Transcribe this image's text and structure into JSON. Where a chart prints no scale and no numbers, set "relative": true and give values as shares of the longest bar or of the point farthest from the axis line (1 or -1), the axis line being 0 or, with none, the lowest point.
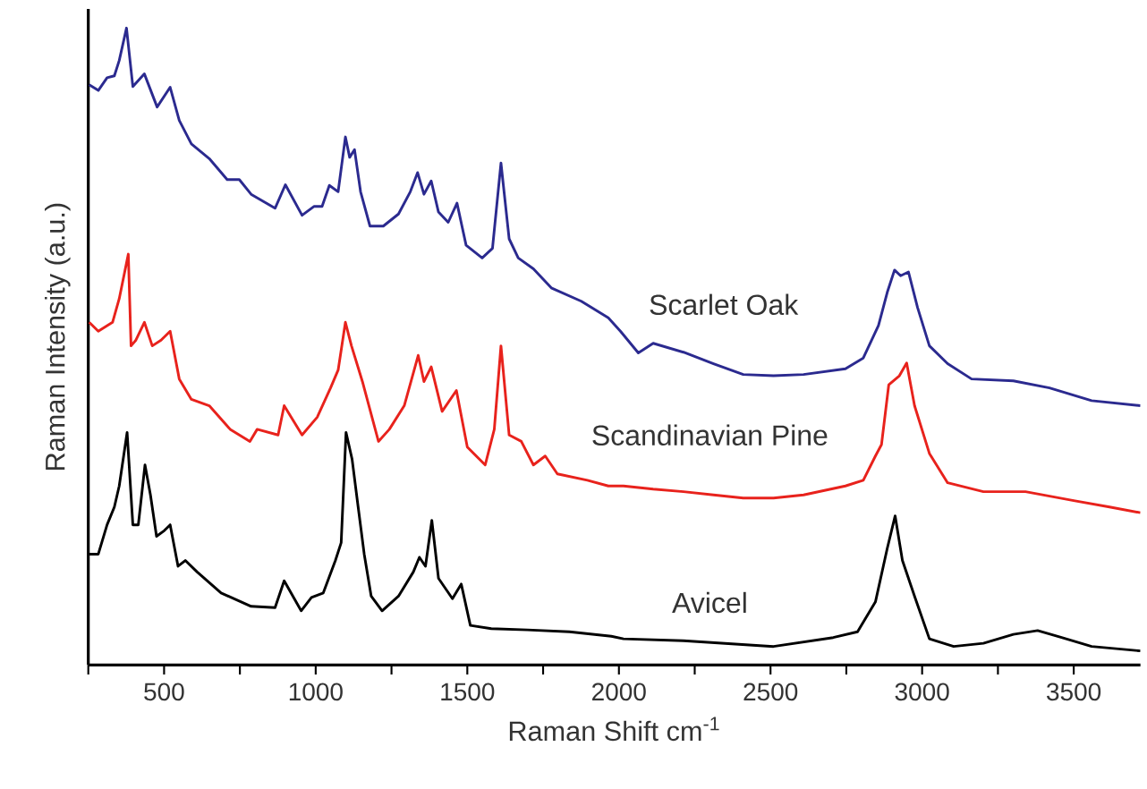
{
  "chart_data": {
    "type": "line",
    "relative": true,
    "xlabel": "Raman Shift cm$^{-1}$",
    "ylabel": "Raman Intensity (a.u.)",
    "xlim": [
      250,
      3720
    ],
    "xticks": [
      {
        "value": 250,
        "label": null
      },
      500,
      {
        "value": 750,
        "label": null
      },
      1000,
      {
        "value": 1250,
        "label": null
      },
      1500,
      {
        "value": 1750,
        "label": null
      },
      2000,
      {
        "value": 2250,
        "label": null
      },
      2500,
      {
        "value": 2750,
        "label": null
      },
      3000,
      {
        "value": 3250,
        "label": null
      },
      3500
    ],
    "marker": "none",
    "line_style": "solid",
    "legend": false,
    "grid": false,
    "series": [
      {
        "name": "Scarlet Oak",
        "color": "#2b2a8f",
        "x": [
          253,
          283,
          312,
          336,
          352,
          376,
          397,
          435,
          477,
          520,
          550,
          590,
          649,
          708,
          748,
          787,
          866,
          900,
          955,
          995,
          1021,
          1045,
          1074,
          1098,
          1112,
          1128,
          1148,
          1179,
          1223,
          1273,
          1312,
          1336,
          1357,
          1381,
          1405,
          1437,
          1466,
          1496,
          1549,
          1583,
          1611,
          1638,
          1668,
          1718,
          1777,
          1876,
          1965,
          2005,
          2064,
          2113,
          2213,
          2312,
          2410,
          2510,
          2609,
          2747,
          2806,
          2856,
          2885,
          2909,
          2929,
          2955,
          2985,
          3024,
          3084,
          3163,
          3301,
          3420,
          3559,
          3720
        ],
        "values": [
          0.911,
          0.902,
          0.922,
          0.925,
          0.949,
          1.0,
          0.908,
          0.928,
          0.876,
          0.907,
          0.855,
          0.818,
          0.795,
          0.762,
          0.762,
          0.739,
          0.717,
          0.754,
          0.706,
          0.72,
          0.72,
          0.753,
          0.743,
          0.829,
          0.797,
          0.809,
          0.743,
          0.689,
          0.689,
          0.708,
          0.743,
          0.773,
          0.739,
          0.76,
          0.711,
          0.695,
          0.725,
          0.659,
          0.639,
          0.654,
          0.788,
          0.669,
          0.639,
          0.622,
          0.592,
          0.571,
          0.545,
          0.524,
          0.49,
          0.505,
          0.491,
          0.473,
          0.456,
          0.454,
          0.456,
          0.465,
          0.482,
          0.533,
          0.585,
          0.62,
          0.611,
          0.617,
          0.561,
          0.501,
          0.473,
          0.449,
          0.446,
          0.435,
          0.415,
          0.407
        ]
      },
      {
        "name": "Scandinavian Pine",
        "color": "#e8221c",
        "x": [
          253,
          283,
          330,
          352,
          382,
          391,
          407,
          435,
          461,
          490,
          520,
          550,
          590,
          649,
          718,
          783,
          807,
          876,
          896,
          955,
          1005,
          1049,
          1074,
          1098,
          1118,
          1154,
          1207,
          1243,
          1292,
          1338,
          1357,
          1381,
          1417,
          1464,
          1500,
          1559,
          1589,
          1611,
          1638,
          1678,
          1718,
          1757,
          1797,
          1896,
          1965,
          2015,
          2113,
          2213,
          2312,
          2410,
          2510,
          2609,
          2747,
          2806,
          2846,
          2866,
          2890,
          2925,
          2949,
          2975,
          3024,
          3084,
          3202,
          3341,
          3500,
          3618,
          3720
        ],
        "values": [
          0.538,
          0.524,
          0.538,
          0.575,
          0.645,
          0.501,
          0.51,
          0.538,
          0.501,
          0.51,
          0.524,
          0.449,
          0.417,
          0.407,
          0.37,
          0.351,
          0.37,
          0.361,
          0.407,
          0.361,
          0.389,
          0.435,
          0.463,
          0.538,
          0.501,
          0.445,
          0.351,
          0.37,
          0.407,
          0.486,
          0.445,
          0.468,
          0.398,
          0.431,
          0.342,
          0.314,
          0.37,
          0.501,
          0.361,
          0.351,
          0.314,
          0.328,
          0.3,
          0.29,
          0.281,
          0.281,
          0.276,
          0.272,
          0.267,
          0.262,
          0.262,
          0.267,
          0.281,
          0.29,
          0.328,
          0.346,
          0.44,
          0.454,
          0.474,
          0.407,
          0.332,
          0.286,
          0.272,
          0.272,
          0.258,
          0.248,
          0.239
        ]
      },
      {
        "name": "Avicel",
        "color": "#000000",
        "x": [
          253,
          283,
          312,
          336,
          352,
          378,
          397,
          415,
          437,
          455,
          475,
          501,
          520,
          546,
          570,
          609,
          688,
          787,
          866,
          896,
          952,
          986,
          1025,
          1065,
          1084,
          1100,
          1120,
          1140,
          1160,
          1183,
          1219,
          1273,
          1322,
          1342,
          1362,
          1383,
          1405,
          1451,
          1480,
          1510,
          1579,
          1698,
          1837,
          1975,
          2015,
          2213,
          2510,
          2707,
          2787,
          2846,
          2885,
          2911,
          2935,
          2975,
          3024,
          3104,
          3202,
          3301,
          3381,
          3460,
          3559,
          3720
        ],
        "values": [
          0.174,
          0.174,
          0.22,
          0.248,
          0.281,
          0.365,
          0.22,
          0.22,
          0.314,
          0.267,
          0.202,
          0.211,
          0.22,
          0.155,
          0.164,
          0.146,
          0.113,
          0.092,
          0.09,
          0.132,
          0.085,
          0.106,
          0.113,
          0.164,
          0.192,
          0.365,
          0.323,
          0.248,
          0.174,
          0.108,
          0.085,
          0.108,
          0.146,
          0.169,
          0.155,
          0.227,
          0.136,
          0.104,
          0.127,
          0.062,
          0.057,
          0.055,
          0.052,
          0.045,
          0.041,
          0.038,
          0.029,
          0.043,
          0.052,
          0.099,
          0.183,
          0.234,
          0.164,
          0.108,
          0.041,
          0.029,
          0.034,
          0.048,
          0.054,
          0.043,
          0.029,
          0.022
        ]
      }
    ]
  }
}
